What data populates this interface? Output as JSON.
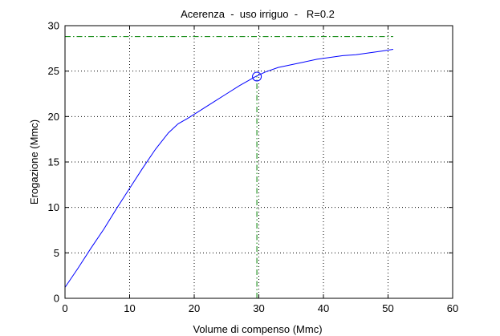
{
  "chart_data": {
    "type": "line",
    "title": "Acerenza  -  uso irriguo  -   R=0.2",
    "xlabel": "Volume di compenso (Mmc)",
    "ylabel": "Erogazione (Mmc)",
    "xlim": [
      0,
      60
    ],
    "ylim": [
      0,
      30
    ],
    "xticks": [
      0,
      10,
      20,
      30,
      40,
      50,
      60
    ],
    "yticks": [
      0,
      5,
      10,
      15,
      20,
      25,
      30
    ],
    "grid": true,
    "series": [
      {
        "color": "#0000ff",
        "x": [
          0,
          2,
          4,
          6,
          8,
          10,
          12,
          14,
          16,
          17.5,
          19,
          21,
          23,
          25,
          27,
          29.5,
          31,
          33,
          35,
          37,
          39,
          41,
          43,
          45,
          47,
          49,
          50.8
        ],
        "y": [
          1.2,
          3.3,
          5.5,
          7.6,
          9.9,
          12.1,
          14.3,
          16.4,
          18.2,
          19.2,
          19.8,
          20.7,
          21.6,
          22.5,
          23.4,
          24.4,
          24.9,
          25.4,
          25.7,
          26.0,
          26.3,
          26.5,
          26.7,
          26.8,
          27.0,
          27.2,
          27.4
        ]
      }
    ],
    "marker": {
      "x": 29.7,
      "y": 24.4,
      "color": "#0000ff"
    },
    "reference_lines": {
      "horizontal": {
        "y": 28.8,
        "x_to": 50.8,
        "color": "#008000"
      },
      "vertical": {
        "x": 29.7,
        "y_to": 24.4,
        "color": "#008000"
      }
    }
  }
}
